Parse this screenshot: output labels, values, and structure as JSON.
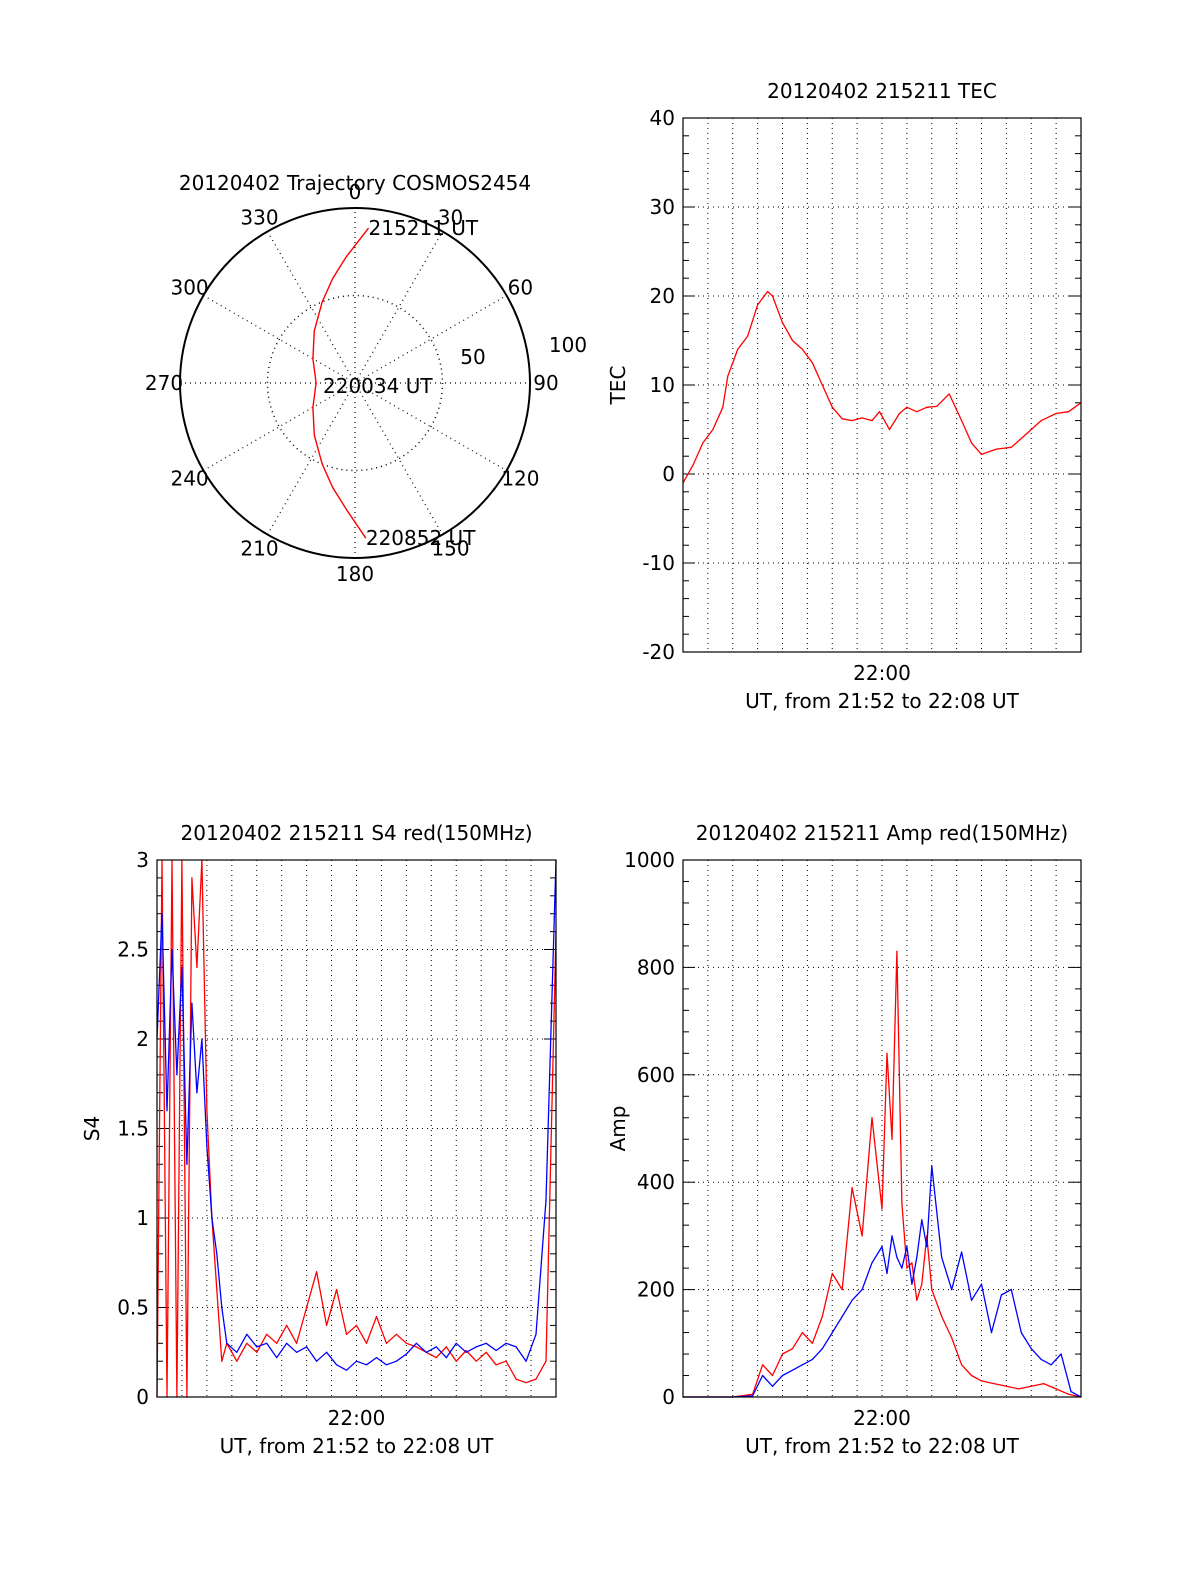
{
  "chart_data": [
    {
      "id": "polar",
      "type": "scatter",
      "title": "20120402 Trajectory COSMOS2454",
      "angle_labels": [
        "0",
        "30",
        "60",
        "90",
        "120",
        "150",
        "180",
        "210",
        "240",
        "270",
        "300",
        "330"
      ],
      "radius_labels": [
        "50",
        "100"
      ],
      "trajectory_color": "#ff0000",
      "series": [
        {
          "values_az_el": [
            [
              5,
              10
            ],
            [
              -4,
              25
            ],
            [
              -12,
              35
            ],
            [
              -22,
              45
            ],
            [
              -38,
              56
            ],
            [
              -60,
              65
            ],
            [
              -90,
              70
            ],
            [
              -120,
              65
            ],
            [
              -142,
              56
            ],
            [
              -158,
              45
            ],
            [
              -168,
              35
            ],
            [
              -176,
              25
            ],
            [
              -184,
              10
            ]
          ]
        }
      ],
      "annotations": [
        {
          "text": "215211 UT",
          "az": 5,
          "el": 10
        },
        {
          "text": "220034 UT",
          "az": -90,
          "el": 72
        },
        {
          "text": "220852 UT",
          "az": -184,
          "el": 10
        }
      ]
    },
    {
      "id": "tec",
      "type": "line",
      "title": "20120402 215211 TEC",
      "xlabel": "UT, from 21:52 to 22:08 UT",
      "ylabel": "TEC",
      "xlim": [
        0,
        16
      ],
      "ylim": [
        -20,
        40
      ],
      "yticks": [
        "-20",
        "-10",
        "0",
        "10",
        "20",
        "30",
        "40"
      ],
      "xtick_label": "22:00",
      "grid": true,
      "series": [
        {
          "color": "#ff0000",
          "x": [
            0,
            0.4,
            0.8,
            1.2,
            1.6,
            1.8,
            2.2,
            2.6,
            3,
            3.4,
            3.6,
            4,
            4.4,
            4.8,
            5.2,
            5.6,
            6,
            6.4,
            6.8,
            7.2,
            7.6,
            7.9,
            8.3,
            8.7,
            9,
            9.4,
            9.8,
            10.2,
            10.7,
            11.2,
            11.6,
            12,
            12.6,
            13.2,
            13.8,
            14.4,
            15,
            15.5,
            16
          ],
          "values": [
            -1,
            1,
            3.5,
            5,
            7.5,
            11,
            14,
            15.5,
            19,
            20.5,
            20,
            17,
            15,
            14,
            12.5,
            10,
            7.5,
            6.2,
            6,
            6.3,
            6,
            7,
            5,
            6.8,
            7.5,
            7,
            7.5,
            7.6,
            9,
            6,
            3.5,
            2.2,
            2.8,
            3,
            4.5,
            6,
            6.8,
            7,
            8
          ]
        }
      ]
    },
    {
      "id": "s4",
      "type": "line",
      "title": "20120402 215211 S4 red(150MHz)",
      "xlabel": "UT, from 21:52 to 22:08 UT",
      "ylabel": "S4",
      "xlim": [
        0,
        16
      ],
      "ylim": [
        0,
        3
      ],
      "yticks": [
        "0",
        "0.5",
        "1",
        "1.5",
        "2",
        "2.5",
        "3"
      ],
      "xtick_label": "22:00",
      "grid": true,
      "series": [
        {
          "color": "#ff0000",
          "x": [
            0,
            0.2,
            0.4,
            0.6,
            0.8,
            1,
            1.2,
            1.4,
            1.6,
            1.8,
            2,
            2.2,
            2.4,
            2.6,
            2.8,
            3.2,
            3.6,
            4,
            4.4,
            4.8,
            5.2,
            5.6,
            6,
            6.4,
            6.8,
            7.2,
            7.6,
            8,
            8.4,
            8.8,
            9.2,
            9.6,
            10,
            10.4,
            10.8,
            11.2,
            11.6,
            12,
            12.4,
            12.8,
            13.2,
            13.6,
            14,
            14.4,
            14.8,
            15.2,
            15.6,
            16
          ],
          "values": [
            0,
            3,
            0,
            3,
            0,
            3,
            0,
            2.9,
            2.4,
            3,
            1.6,
            1.0,
            0.6,
            0.2,
            0.3,
            0.2,
            0.3,
            0.25,
            0.35,
            0.3,
            0.4,
            0.3,
            0.5,
            0.7,
            0.4,
            0.6,
            0.35,
            0.4,
            0.3,
            0.45,
            0.3,
            0.35,
            0.3,
            0.28,
            0.25,
            0.22,
            0.28,
            0.2,
            0.26,
            0.2,
            0.25,
            0.18,
            0.2,
            0.1,
            0.08,
            0.1,
            0.2,
            2.6
          ]
        },
        {
          "color": "#0000ff",
          "x": [
            0,
            0.2,
            0.4,
            0.6,
            0.8,
            1,
            1.2,
            1.4,
            1.6,
            1.8,
            2,
            2.2,
            2.4,
            2.6,
            2.8,
            3.2,
            3.6,
            4,
            4.4,
            4.8,
            5.2,
            5.6,
            6,
            6.4,
            6.8,
            7.2,
            7.6,
            8,
            8.4,
            8.8,
            9.2,
            9.6,
            10,
            10.4,
            10.8,
            11.2,
            11.6,
            12,
            12.4,
            12.8,
            13.2,
            13.6,
            14,
            14.4,
            14.8,
            15.2,
            15.6,
            16
          ],
          "values": [
            2.0,
            2.7,
            1.6,
            2.5,
            1.8,
            2.4,
            1.3,
            2.2,
            1.7,
            2.0,
            1.4,
            1.0,
            0.8,
            0.5,
            0.3,
            0.25,
            0.35,
            0.28,
            0.3,
            0.22,
            0.3,
            0.25,
            0.28,
            0.2,
            0.25,
            0.18,
            0.15,
            0.2,
            0.18,
            0.22,
            0.18,
            0.2,
            0.24,
            0.3,
            0.25,
            0.28,
            0.22,
            0.3,
            0.25,
            0.28,
            0.3,
            0.26,
            0.3,
            0.28,
            0.2,
            0.35,
            1.1,
            3.0
          ]
        }
      ]
    },
    {
      "id": "amp",
      "type": "line",
      "title": "20120402 215211 Amp red(150MHz)",
      "xlabel": "UT, from 21:52 to 22:08 UT",
      "ylabel": "Amp",
      "xlim": [
        0,
        16
      ],
      "ylim": [
        0,
        1000
      ],
      "yticks": [
        "0",
        "200",
        "400",
        "600",
        "800",
        "1000"
      ],
      "xtick_label": "22:00",
      "grid": true,
      "series": [
        {
          "color": "#ff0000",
          "x": [
            0,
            2,
            2.8,
            3.2,
            3.6,
            4,
            4.4,
            4.8,
            5.2,
            5.6,
            6,
            6.4,
            6.8,
            7.2,
            7.6,
            8,
            8.2,
            8.4,
            8.6,
            8.8,
            9,
            9.2,
            9.4,
            9.6,
            9.8,
            10,
            10.4,
            10.8,
            11.2,
            11.6,
            12,
            12.5,
            13,
            13.5,
            14,
            14.5,
            15,
            15.5,
            16
          ],
          "values": [
            0,
            0,
            5,
            60,
            40,
            80,
            90,
            120,
            100,
            150,
            230,
            200,
            390,
            300,
            520,
            350,
            640,
            480,
            830,
            360,
            240,
            250,
            180,
            210,
            300,
            200,
            150,
            110,
            60,
            40,
            30,
            25,
            20,
            15,
            20,
            25,
            15,
            5,
            0
          ]
        },
        {
          "color": "#0000ff",
          "x": [
            0,
            2,
            2.8,
            3.2,
            3.6,
            4,
            4.4,
            4.8,
            5.2,
            5.6,
            6,
            6.4,
            6.8,
            7.2,
            7.6,
            8,
            8.2,
            8.4,
            8.6,
            8.8,
            9,
            9.2,
            9.4,
            9.6,
            9.8,
            10,
            10.4,
            10.8,
            11.2,
            11.6,
            12,
            12.4,
            12.8,
            13.2,
            13.6,
            14,
            14.4,
            14.8,
            15.2,
            15.6,
            16
          ],
          "values": [
            0,
            0,
            2,
            40,
            20,
            40,
            50,
            60,
            70,
            90,
            120,
            150,
            180,
            200,
            250,
            280,
            230,
            300,
            260,
            240,
            280,
            210,
            260,
            330,
            280,
            430,
            260,
            200,
            270,
            180,
            210,
            120,
            190,
            200,
            120,
            90,
            70,
            60,
            80,
            10,
            0
          ]
        }
      ]
    }
  ]
}
